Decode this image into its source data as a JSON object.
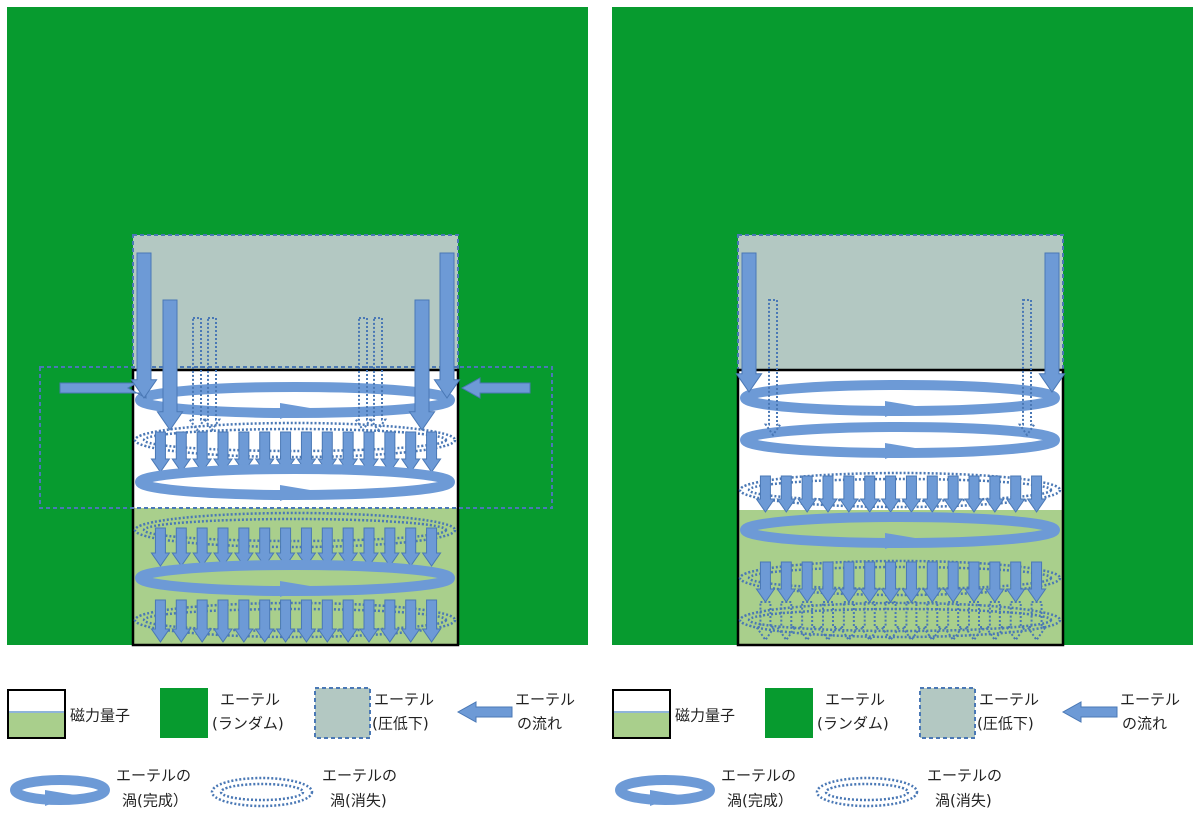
{
  "panels": [
    {
      "legend": {
        "magnetic_quantum": "磁力量子",
        "ether_random": [
          "エーテル",
          "(ランダム)"
        ],
        "ether_low_pressure": [
          "エーテル",
          "(圧低下)"
        ],
        "ether_flow": [
          "エーテル",
          "の流れ"
        ],
        "vortex_complete": [
          "エーテルの",
          "渦(完成）"
        ],
        "vortex_vanish": [
          "エーテルの",
          "渦(消失)"
        ]
      }
    },
    {
      "legend": {
        "magnetic_quantum": "磁力量子",
        "ether_random": [
          "エーテル",
          "(ランダム)"
        ],
        "ether_low_pressure": [
          "エーテル",
          "(圧低下)"
        ],
        "ether_flow": [
          "エーテル",
          "の流れ"
        ],
        "vortex_complete": [
          "エーテルの",
          "渦(完成）"
        ],
        "vortex_vanish": [
          "エーテルの",
          "渦(消失)"
        ]
      }
    }
  ]
}
